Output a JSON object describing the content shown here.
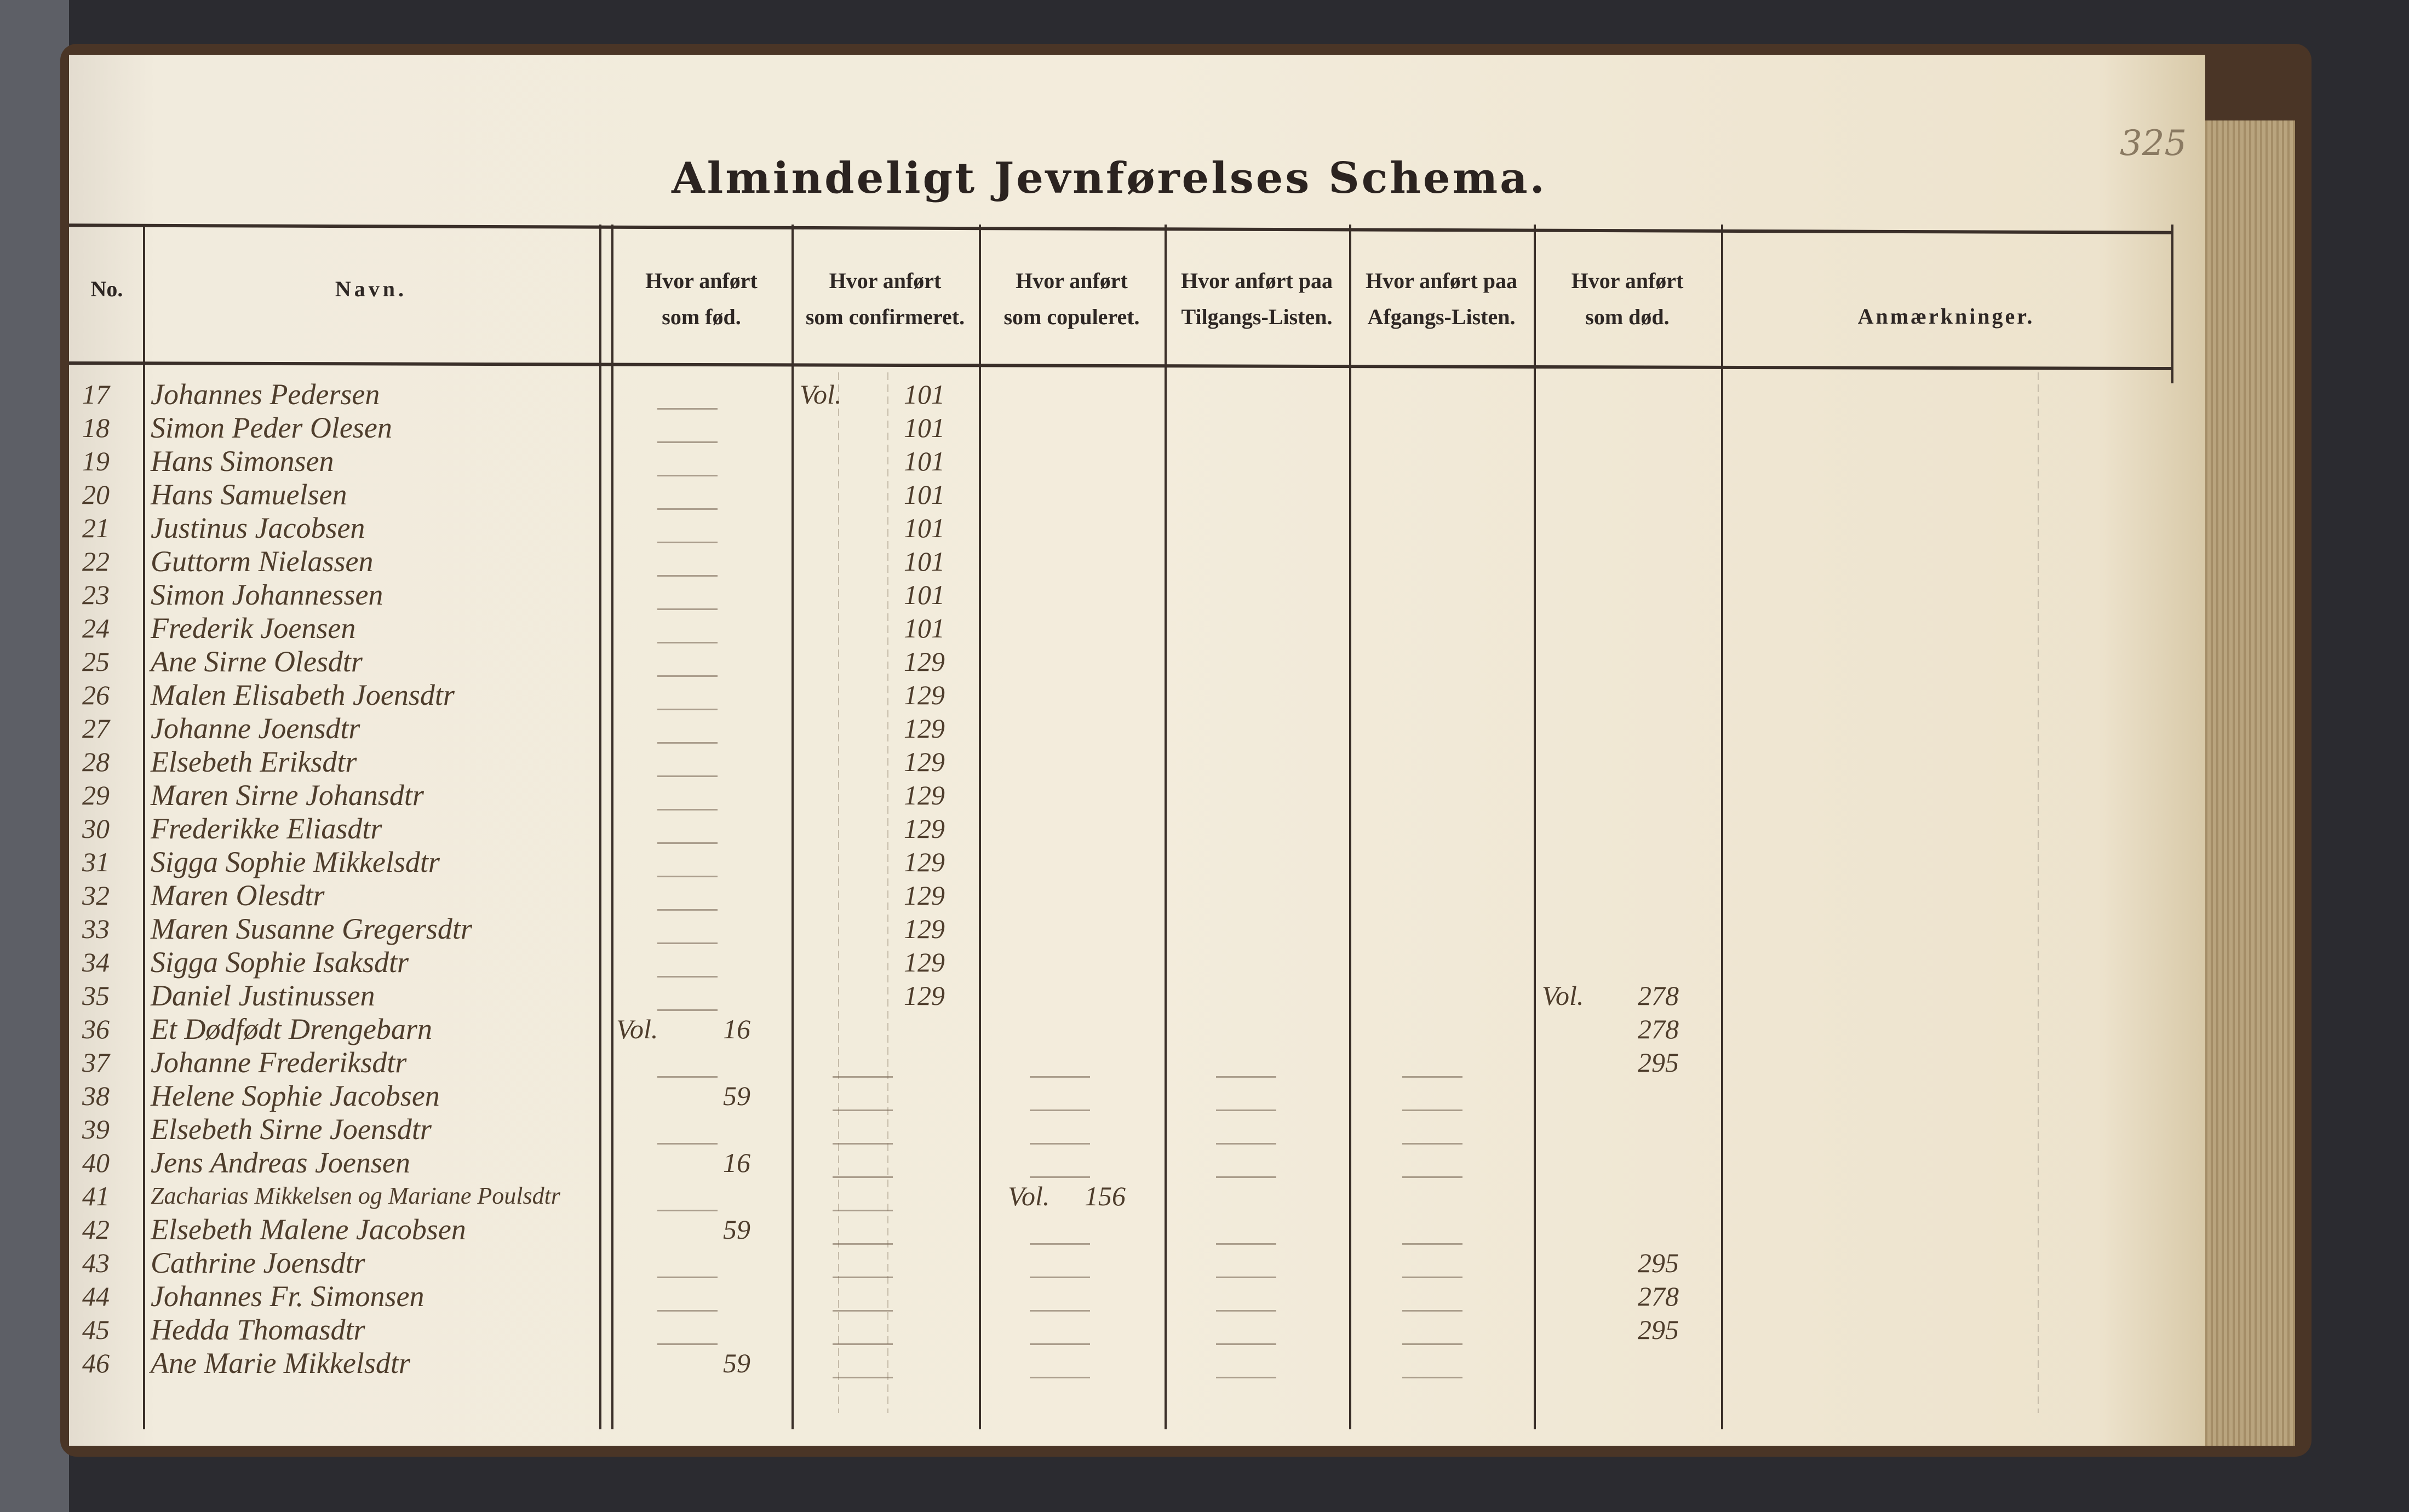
{
  "page": {
    "title": "Almindeligt Jevnførelses Schema.",
    "page_number": "325",
    "paper_color": "#f1ebdd",
    "ink_color": "#4e3d2c"
  },
  "headers": {
    "no": "No.",
    "navn": "Navn.",
    "fod": [
      "Hvor anført",
      "som fød."
    ],
    "conf": [
      "Hvor anført",
      "som confirmeret."
    ],
    "cop": [
      "Hvor anført",
      "som copuleret."
    ],
    "tilg": [
      "Hvor anført paa",
      "Tilgangs-Listen."
    ],
    "afg": [
      "Hvor anført paa",
      "Afgangs-Listen."
    ],
    "dod": [
      "Hvor anført",
      "som død."
    ],
    "anm": "Anmærkninger."
  },
  "rows": [
    {
      "no": "17",
      "name": "Johannes Pedersen",
      "conf_vol": "Vol.",
      "conf": "101"
    },
    {
      "no": "18",
      "name": "Simon Peder Olesen",
      "conf": "101"
    },
    {
      "no": "19",
      "name": "Hans Simonsen",
      "conf": "101"
    },
    {
      "no": "20",
      "name": "Hans Samuelsen",
      "conf": "101"
    },
    {
      "no": "21",
      "name": "Justinus Jacobsen",
      "conf": "101"
    },
    {
      "no": "22",
      "name": "Guttorm Nielassen",
      "conf": "101"
    },
    {
      "no": "23",
      "name": "Simon Johannessen",
      "conf": "101"
    },
    {
      "no": "24",
      "name": "Frederik Joensen",
      "conf": "101"
    },
    {
      "no": "25",
      "name": "Ane Sirne Olesdtr",
      "conf": "129"
    },
    {
      "no": "26",
      "name": "Malen Elisabeth Joensdtr",
      "conf": "129"
    },
    {
      "no": "27",
      "name": "Johanne Joensdtr",
      "conf": "129"
    },
    {
      "no": "28",
      "name": "Elsebeth Eriksdtr",
      "conf": "129"
    },
    {
      "no": "29",
      "name": "Maren Sirne Johansdtr",
      "conf": "129"
    },
    {
      "no": "30",
      "name": "Frederikke Eliasdtr",
      "conf": "129"
    },
    {
      "no": "31",
      "name": "Sigga Sophie Mikkelsdtr",
      "conf": "129"
    },
    {
      "no": "32",
      "name": "Maren Olesdtr",
      "conf": "129"
    },
    {
      "no": "33",
      "name": "Maren Susanne Gregersdtr",
      "conf": "129"
    },
    {
      "no": "34",
      "name": "Sigga Sophie Isaksdtr",
      "conf": "129"
    },
    {
      "no": "35",
      "name": "Daniel Justinussen",
      "conf": "129",
      "dod_vol": "Vol.",
      "dod": "278"
    },
    {
      "no": "36",
      "name": "Et Dødfødt Drengebarn",
      "fod_vol": "Vol.",
      "fod": "16",
      "dod": "278"
    },
    {
      "no": "37",
      "name": "Johanne Frederiksdtr",
      "dod": "295"
    },
    {
      "no": "38",
      "name": "Helene Sophie Jacobsen",
      "fod": "59"
    },
    {
      "no": "39",
      "name": "Elsebeth Sirne Joensdtr"
    },
    {
      "no": "40",
      "name": "Jens Andreas Joensen",
      "fod": "16"
    },
    {
      "no": "41",
      "name": "Zacharias Mikkelsen og Mariane Poulsdtr",
      "cop_vol": "Vol.",
      "cop": "156"
    },
    {
      "no": "42",
      "name": "Elsebeth Malene Jacobsen",
      "fod": "59"
    },
    {
      "no": "43",
      "name": "Cathrine Joensdtr",
      "dod": "295"
    },
    {
      "no": "44",
      "name": "Johannes Fr. Simonsen",
      "dod": "278"
    },
    {
      "no": "45",
      "name": "Hedda Thomasdtr",
      "dod": "295"
    },
    {
      "no": "46",
      "name": "Ane Marie Mikkelsdtr",
      "fod": "59"
    }
  ]
}
